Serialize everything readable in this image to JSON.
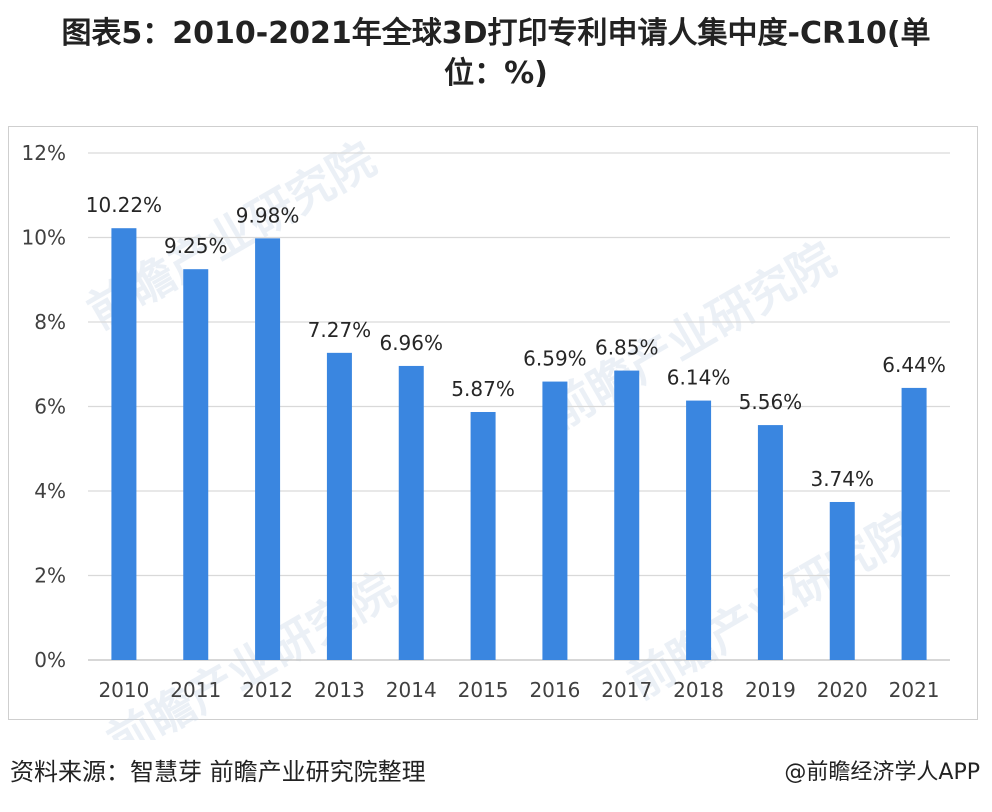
{
  "title": {
    "line1": "图表5：2010-2021年全球3D打印专利申请人集中度-CR10(单",
    "line2": "位：%)"
  },
  "watermark_text": "前瞻产业研究院",
  "footer": {
    "source": "资料来源：智慧芽 前瞻产业研究院整理",
    "credit": "@前瞻经济学人APP"
  },
  "colors": {
    "bar": "#3a86e0",
    "grid": "#d9d9d9",
    "axis": "#bfbfbf"
  },
  "chart_data": {
    "type": "bar",
    "categories": [
      "2010",
      "2011",
      "2012",
      "2013",
      "2014",
      "2015",
      "2016",
      "2017",
      "2018",
      "2019",
      "2020",
      "2021"
    ],
    "values": [
      10.22,
      9.25,
      9.98,
      7.27,
      6.96,
      5.87,
      6.59,
      6.85,
      6.14,
      5.56,
      3.74,
      6.44
    ],
    "data_labels": [
      "10.22%",
      "9.25%",
      "9.98%",
      "7.27%",
      "6.96%",
      "5.87%",
      "6.59%",
      "6.85%",
      "6.14%",
      "5.56%",
      "3.74%",
      "6.44%"
    ],
    "y_ticks": [
      0,
      2,
      4,
      6,
      8,
      10,
      12
    ],
    "y_tick_labels": [
      "0%",
      "2%",
      "4%",
      "6%",
      "8%",
      "10%",
      "12%"
    ],
    "ylim": [
      0,
      12
    ],
    "grid": true,
    "legend": "none"
  }
}
